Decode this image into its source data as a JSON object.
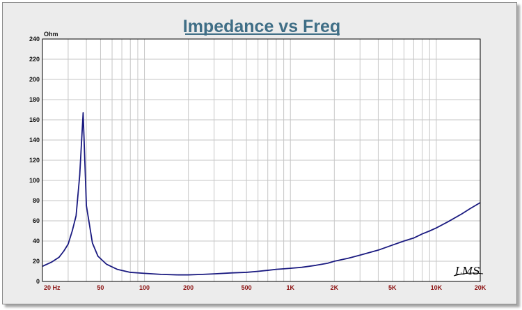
{
  "chart_data": {
    "type": "line",
    "title": "Impedance vs Freq",
    "ylabel": "Ohm",
    "xlabel": "",
    "xscale": "log",
    "xlim": [
      20,
      20000
    ],
    "ylim": [
      0,
      240
    ],
    "yticks": [
      0,
      20,
      40,
      60,
      80,
      100,
      120,
      140,
      160,
      180,
      200,
      220,
      240
    ],
    "xtick_values": [
      20,
      50,
      100,
      200,
      500,
      1000,
      2000,
      5000,
      10000,
      20000
    ],
    "xtick_labels": [
      "20  Hz",
      "50",
      "100",
      "200",
      "500",
      "1K",
      "2K",
      "5K",
      "10K",
      "20K"
    ],
    "grid": true,
    "series": [
      {
        "color": "#1a1a80",
        "x": [
          20,
          23,
          26,
          28,
          30,
          32,
          34,
          36,
          38,
          40,
          44,
          48,
          55,
          65,
          80,
          100,
          130,
          170,
          200,
          250,
          300,
          400,
          500,
          600,
          700,
          800,
          900,
          1000,
          1200,
          1500,
          1800,
          2000,
          2500,
          3000,
          4000,
          5000,
          6000,
          7000,
          8000,
          9000,
          10000,
          12000,
          15000,
          17000,
          20000
        ],
        "y": [
          15,
          19,
          24,
          30,
          37,
          50,
          65,
          105,
          167,
          75,
          38,
          25,
          17,
          12,
          9,
          8,
          7,
          6.5,
          6.5,
          7,
          7.5,
          8.5,
          9,
          10,
          11,
          12,
          12.5,
          13,
          14,
          16,
          18,
          20,
          23,
          26,
          31,
          36,
          40,
          43,
          47,
          50,
          53,
          59,
          67,
          72,
          78
        ]
      }
    ]
  },
  "signature": "LMS"
}
